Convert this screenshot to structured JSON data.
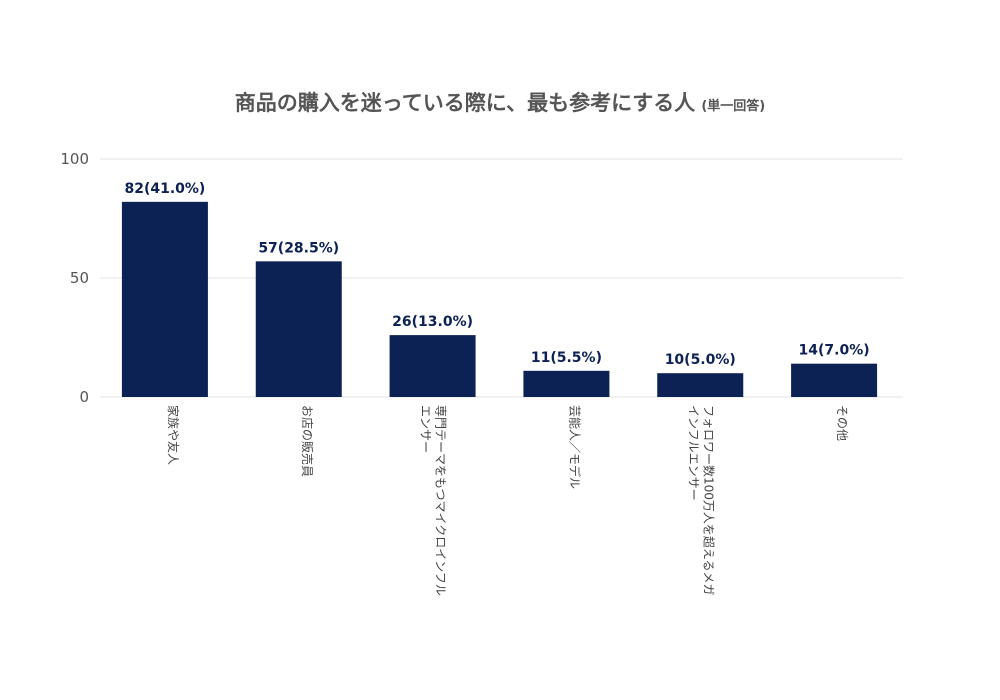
{
  "chart_data": {
    "type": "bar",
    "title": "商品の購入を迷っている際に、最も参考にする人",
    "subtitle": "(単一回答)",
    "categories": [
      [
        "家族や友人"
      ],
      [
        "お店の販売員"
      ],
      [
        "専門テーマをもつマイクロインフル",
        "エンサー"
      ],
      [
        "芸能人／モデル"
      ],
      [
        "フォロワー数100万人を超えるメガ",
        "インフルエンサー"
      ],
      [
        "その他"
      ]
    ],
    "values": [
      82,
      57,
      26,
      11,
      10,
      14
    ],
    "data_labels": [
      "82(41.0%)",
      "57(28.5%)",
      "26(13.0%)",
      "11(5.5%)",
      "10(5.0%)",
      "14(7.0%)"
    ],
    "yticks": [
      "0",
      "50",
      "100"
    ],
    "ylim": [
      0,
      100
    ],
    "grid": true,
    "bar_color": "#0c2154"
  }
}
